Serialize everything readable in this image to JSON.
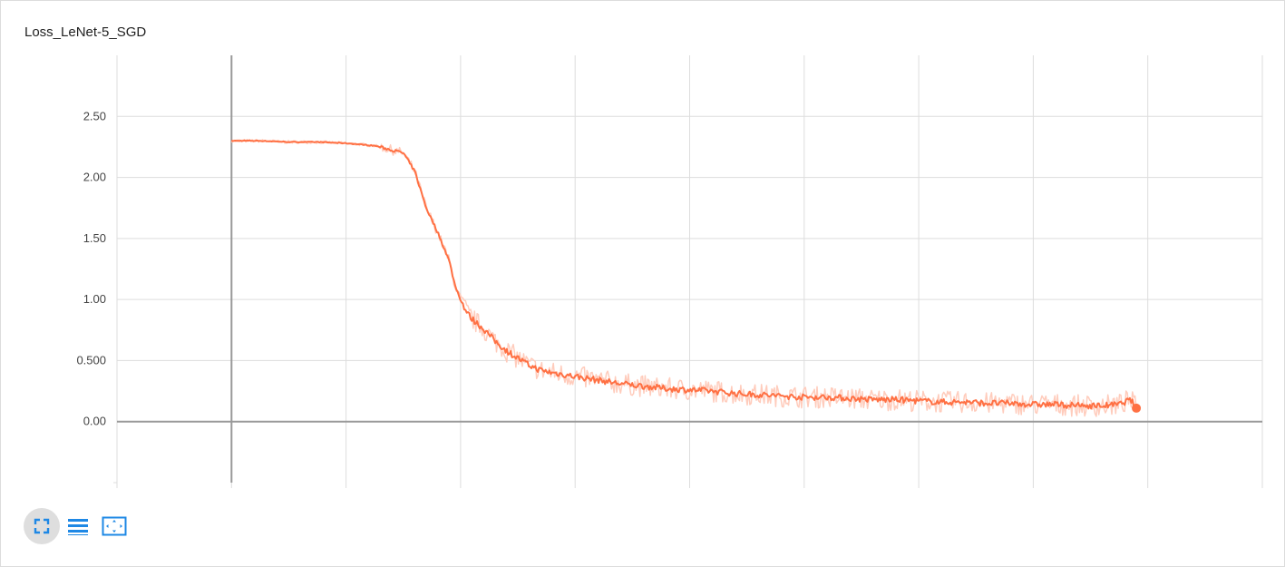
{
  "card": {
    "title": "Loss_LeNet-5_SGD"
  },
  "toolbar": {
    "buttons": [
      {
        "icon": "fullscreen-icon"
      },
      {
        "icon": "list-icon"
      },
      {
        "icon": "fit-domain-icon"
      }
    ]
  },
  "colors": {
    "line": "#ff7043",
    "line_raw": "#ffccbc",
    "grid": "#dddddd",
    "axis": "#999999",
    "icon": "#1e88e5"
  },
  "chart_data": {
    "type": "line",
    "title": "Loss_LeNet-5_SGD",
    "xlabel": "",
    "ylabel": "",
    "ylim": [
      -0.5,
      3.0
    ],
    "xlim": [
      -1,
      8.0
    ],
    "yticks": [
      0.0,
      0.5,
      1.0,
      1.5,
      2.0,
      2.5
    ],
    "ytick_labels": [
      "0.00",
      "0.500",
      "1.00",
      "1.50",
      "2.00",
      "2.50"
    ],
    "xticks": [
      -1,
      0,
      1,
      2,
      3,
      4,
      5,
      6,
      7,
      8,
      9
    ],
    "xtick_labels": [],
    "grid": true,
    "series": [
      {
        "smoothed": true,
        "x": [
          0.0,
          0.25,
          0.5,
          0.75,
          1.0,
          1.25,
          1.5,
          1.6,
          1.7,
          1.8,
          1.9,
          1.95,
          2.0,
          2.05,
          2.1,
          2.2,
          2.3,
          2.4,
          2.5,
          2.6,
          2.7,
          2.8,
          3.0,
          3.2,
          3.4,
          3.6,
          3.8,
          4.0,
          4.2,
          4.4,
          4.6,
          4.8,
          5.0,
          5.2,
          5.4,
          5.6,
          5.8,
          6.0,
          6.2,
          6.4,
          6.6,
          6.8,
          7.0,
          7.2,
          7.4,
          7.6,
          7.75,
          7.85,
          7.9
        ],
        "y": [
          2.3,
          2.3,
          2.29,
          2.29,
          2.28,
          2.26,
          2.2,
          2.05,
          1.75,
          1.55,
          1.32,
          1.12,
          1.0,
          0.9,
          0.84,
          0.76,
          0.66,
          0.58,
          0.52,
          0.46,
          0.42,
          0.4,
          0.37,
          0.34,
          0.31,
          0.29,
          0.27,
          0.26,
          0.25,
          0.23,
          0.22,
          0.21,
          0.2,
          0.2,
          0.19,
          0.18,
          0.18,
          0.17,
          0.16,
          0.16,
          0.15,
          0.15,
          0.14,
          0.14,
          0.13,
          0.13,
          0.14,
          0.18,
          0.11
        ]
      }
    ],
    "last_point": {
      "x": 7.9,
      "y": 0.11
    }
  }
}
